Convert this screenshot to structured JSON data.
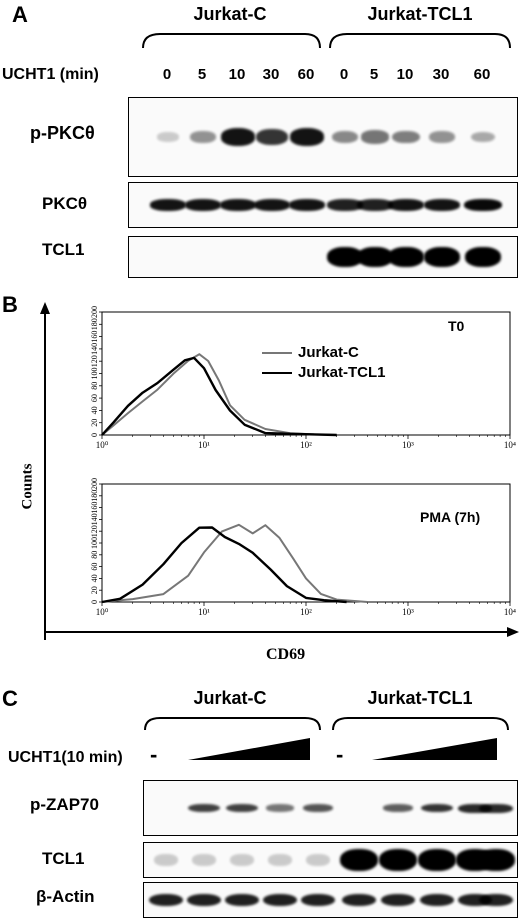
{
  "panelA": {
    "letter": "A",
    "groups": [
      "Jurkat-C",
      "Jurkat-TCL1"
    ],
    "treatment_label": "UCHT1 (min)",
    "timepoints": [
      "0",
      "5",
      "10",
      "30",
      "60",
      "0",
      "5",
      "10",
      "30",
      "60"
    ],
    "rows": [
      {
        "label": "p-PKCθ",
        "intensity": [
          0.05,
          0.3,
          0.9,
          0.75,
          0.9,
          0.35,
          0.45,
          0.4,
          0.3,
          0.2
        ]
      },
      {
        "label": "PKCθ",
        "intensity": [
          0.9,
          0.9,
          0.9,
          0.9,
          0.9,
          0.85,
          0.85,
          0.9,
          0.9,
          0.95
        ]
      },
      {
        "label": "TCL1",
        "intensity": [
          0,
          0,
          0,
          0,
          0,
          1,
          1,
          1,
          1,
          1
        ]
      }
    ]
  },
  "panelB": {
    "letter": "B",
    "ylabel": "Counts",
    "xlabel": "CD69",
    "legend": [
      "Jurkat-C",
      "Jurkat-TCL1"
    ],
    "colors": {
      "jurkat_c": "#777777",
      "jurkat_tcl1": "#000000"
    },
    "chart_data": [
      {
        "type": "line",
        "title": "T0",
        "x_scale": "log",
        "xlim": [
          1,
          10000
        ],
        "ylim": [
          0,
          200
        ],
        "y_ticks": [
          "0",
          "20",
          "40",
          "60",
          "80",
          "100",
          "120",
          "140",
          "160",
          "180",
          "200"
        ],
        "x_ticks": [
          "10⁰",
          "10¹",
          "10²",
          "10³",
          "10⁴"
        ],
        "series": [
          {
            "name": "Jurkat-C",
            "x": [
              1,
              1.3,
              1.8,
              2.5,
              3.5,
              5,
              7,
              9,
              11,
              14,
              18,
              25,
              40,
              70,
              120,
              200
            ],
            "y": [
              0,
              20,
              40,
              55,
              70,
              95,
              120,
              135,
              125,
              90,
              45,
              20,
              8,
              3,
              1,
              0
            ]
          },
          {
            "name": "Jurkat-TCL1",
            "x": [
              1,
              1.3,
              1.8,
              2.5,
              3.5,
              5,
              6.5,
              8,
              10,
              13,
              18,
              25,
              40,
              70,
              120,
              200
            ],
            "y": [
              0,
              25,
              48,
              65,
              80,
              105,
              125,
              130,
              110,
              70,
              35,
              15,
              6,
              2,
              1,
              0
            ]
          }
        ]
      },
      {
        "type": "line",
        "title": "PMA (7h)",
        "x_scale": "log",
        "xlim": [
          1,
          10000
        ],
        "ylim": [
          0,
          200
        ],
        "y_ticks": [
          "0",
          "20",
          "40",
          "60",
          "80",
          "100",
          "120",
          "140",
          "160",
          "180",
          "200"
        ],
        "x_ticks": [
          "10⁰",
          "10¹",
          "10²",
          "10³",
          "10⁴"
        ],
        "series": [
          {
            "name": "Jurkat-C",
            "x": [
              1,
              2,
              4,
              7,
              10,
              15,
              22,
              30,
              40,
              55,
              75,
              100,
              140,
              200,
              400
            ],
            "y": [
              0,
              5,
              18,
              45,
              80,
              115,
              130,
              120,
              135,
              110,
              70,
              35,
              12,
              4,
              0
            ]
          },
          {
            "name": "Jurkat-TCL1",
            "x": [
              1,
              1.5,
              2.5,
              4,
              6,
              9,
              12,
              16,
              22,
              30,
              45,
              65,
              100,
              150,
              250
            ],
            "y": [
              0,
              10,
              30,
              60,
              95,
              125,
              130,
              115,
              100,
              80,
              50,
              25,
              10,
              3,
              0
            ]
          }
        ]
      }
    ]
  },
  "panelC": {
    "letter": "C",
    "groups": [
      "Jurkat-C",
      "Jurkat-TCL1"
    ],
    "treatment_label": "UCHT1(10 min)",
    "minus": "-",
    "rows": [
      {
        "label": "p-ZAP70",
        "intensity": [
          0,
          0.7,
          0.7,
          0.45,
          0.6,
          0,
          0.55,
          0.75,
          0.8,
          0.8
        ]
      },
      {
        "label": "TCL1",
        "intensity": [
          0.05,
          0.05,
          0.05,
          0.05,
          0.05,
          1,
          1,
          1,
          1,
          1
        ]
      },
      {
        "label": "β-Actin",
        "intensity": [
          0.85,
          0.85,
          0.85,
          0.85,
          0.85,
          0.85,
          0.85,
          0.85,
          0.85,
          0.85
        ]
      }
    ]
  }
}
